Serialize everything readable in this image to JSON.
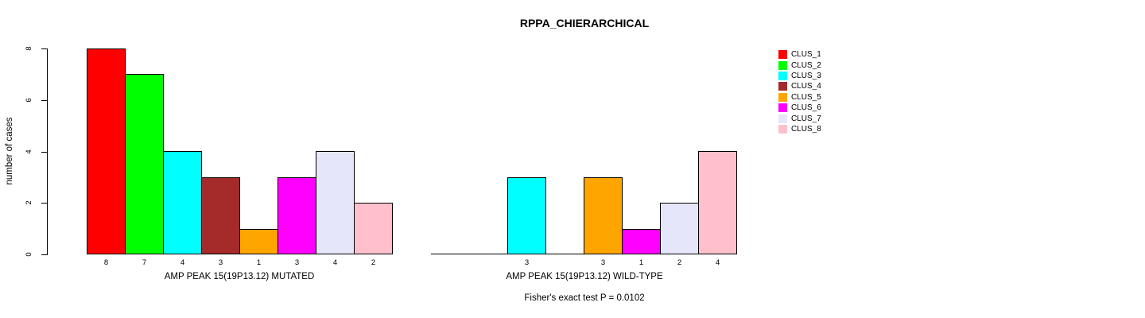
{
  "title": "RPPA_CHIERARCHICAL",
  "chart_data": {
    "type": "bar",
    "title": "RPPA_CHIERARCHICAL",
    "ylabel": "number of cases",
    "ylim": [
      0,
      8
    ],
    "yticks": [
      0,
      2,
      4,
      6,
      8
    ],
    "grid": false,
    "legend_position": "top-right",
    "clusters": [
      {
        "name": "CLUS_1",
        "color": "#FF0000"
      },
      {
        "name": "CLUS_2",
        "color": "#00FF00"
      },
      {
        "name": "CLUS_3",
        "color": "#00FFFF"
      },
      {
        "name": "CLUS_4",
        "color": "#A52A2A"
      },
      {
        "name": "CLUS_5",
        "color": "#FFA500"
      },
      {
        "name": "CLUS_6",
        "color": "#FF00FF"
      },
      {
        "name": "CLUS_7",
        "color": "#E6E6FA"
      },
      {
        "name": "CLUS_8",
        "color": "#FFC0CB"
      }
    ],
    "groups": [
      {
        "xlabel": "AMP PEAK 15(19P13.12) MUTATED",
        "values": [
          8,
          7,
          4,
          3,
          1,
          3,
          4,
          2
        ]
      },
      {
        "xlabel": "AMP PEAK 15(19P13.12) WILD-TYPE",
        "values": [
          0,
          0,
          3,
          0,
          3,
          1,
          2,
          4
        ]
      }
    ],
    "annotation": "Fisher's exact test P = 0.0102"
  }
}
